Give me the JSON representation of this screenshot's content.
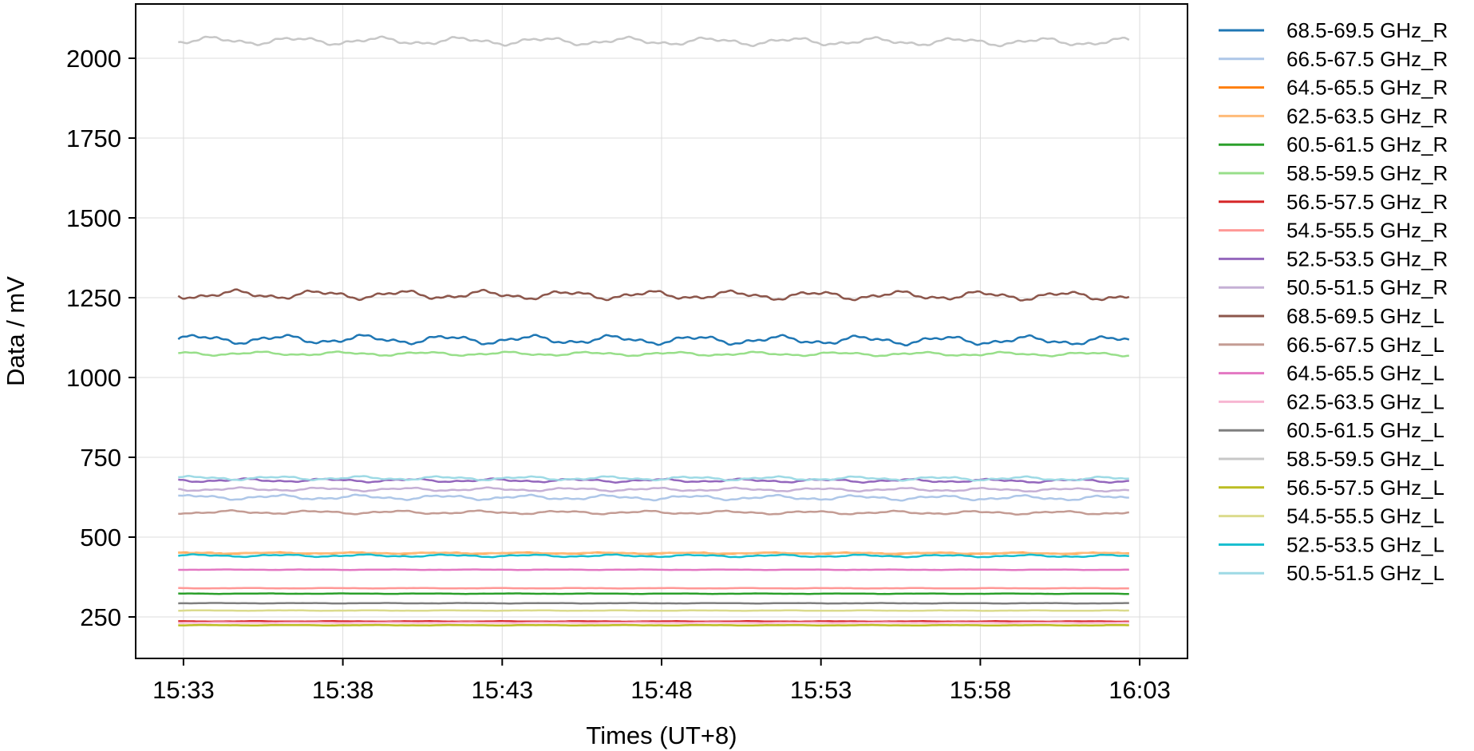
{
  "chart_data": {
    "type": "line",
    "xlabel": "Times (UT+8)",
    "ylabel": "Data / mV",
    "title": "",
    "grid": true,
    "legend_position": "outside-right",
    "x_ticks": [
      "15:33",
      "15:38",
      "15:43",
      "15:48",
      "15:53",
      "15:58",
      "16:03"
    ],
    "xlim": [
      "15:31:30",
      "16:04:30"
    ],
    "x_range": [
      "15:32:50",
      "16:02:40"
    ],
    "y_ticks": [
      250,
      500,
      750,
      1000,
      1250,
      1500,
      1750,
      2000
    ],
    "ylim": [
      120,
      2170
    ],
    "series": [
      {
        "name": "68.5-69.5 GHz_R",
        "color": "#1f77b4",
        "level": 1120,
        "wiggle": 18
      },
      {
        "name": "66.5-67.5 GHz_R",
        "color": "#aec7e8",
        "level": 625,
        "wiggle": 10
      },
      {
        "name": "64.5-65.5 GHz_R",
        "color": "#ff7f0e",
        "level": 450,
        "wiggle": 3
      },
      {
        "name": "62.5-63.5 GHz_R",
        "color": "#ffbb78",
        "level": 450,
        "wiggle": 2
      },
      {
        "name": "60.5-61.5 GHz_R",
        "color": "#2ca02c",
        "level": 323,
        "wiggle": 1
      },
      {
        "name": "58.5-59.5 GHz_R",
        "color": "#98df8a",
        "level": 1075,
        "wiggle": 8
      },
      {
        "name": "56.5-57.5 GHz_R",
        "color": "#d62728",
        "level": 236,
        "wiggle": 1
      },
      {
        "name": "54.5-55.5 GHz_R",
        "color": "#ff9896",
        "level": 340,
        "wiggle": 1
      },
      {
        "name": "52.5-53.5 GHz_R",
        "color": "#9467bd",
        "level": 678,
        "wiggle": 7
      },
      {
        "name": "50.5-51.5 GHz_R",
        "color": "#c5b0d5",
        "level": 650,
        "wiggle": 7
      },
      {
        "name": "68.5-69.5 GHz_L",
        "color": "#8c564b",
        "level": 1260,
        "wiggle": 18
      },
      {
        "name": "66.5-67.5 GHz_L",
        "color": "#c49c94",
        "level": 578,
        "wiggle": 7
      },
      {
        "name": "64.5-65.5 GHz_L",
        "color": "#e377c2",
        "level": 398,
        "wiggle": 1
      },
      {
        "name": "62.5-63.5 GHz_L",
        "color": "#f7b6d2",
        "level": 232,
        "wiggle": 1
      },
      {
        "name": "60.5-61.5 GHz_L",
        "color": "#7f7f7f",
        "level": 293,
        "wiggle": 1
      },
      {
        "name": "58.5-59.5 GHz_L",
        "color": "#c7c7c7",
        "level": 2055,
        "wiggle": 16
      },
      {
        "name": "56.5-57.5 GHz_L",
        "color": "#bcbd22",
        "level": 224,
        "wiggle": 1
      },
      {
        "name": "54.5-55.5 GHz_L",
        "color": "#dbdb8d",
        "level": 270,
        "wiggle": 1
      },
      {
        "name": "52.5-53.5 GHz_L",
        "color": "#17becf",
        "level": 442,
        "wiggle": 5
      },
      {
        "name": "50.5-51.5 GHz_L",
        "color": "#9edae5",
        "level": 685,
        "wiggle": 8
      }
    ]
  }
}
